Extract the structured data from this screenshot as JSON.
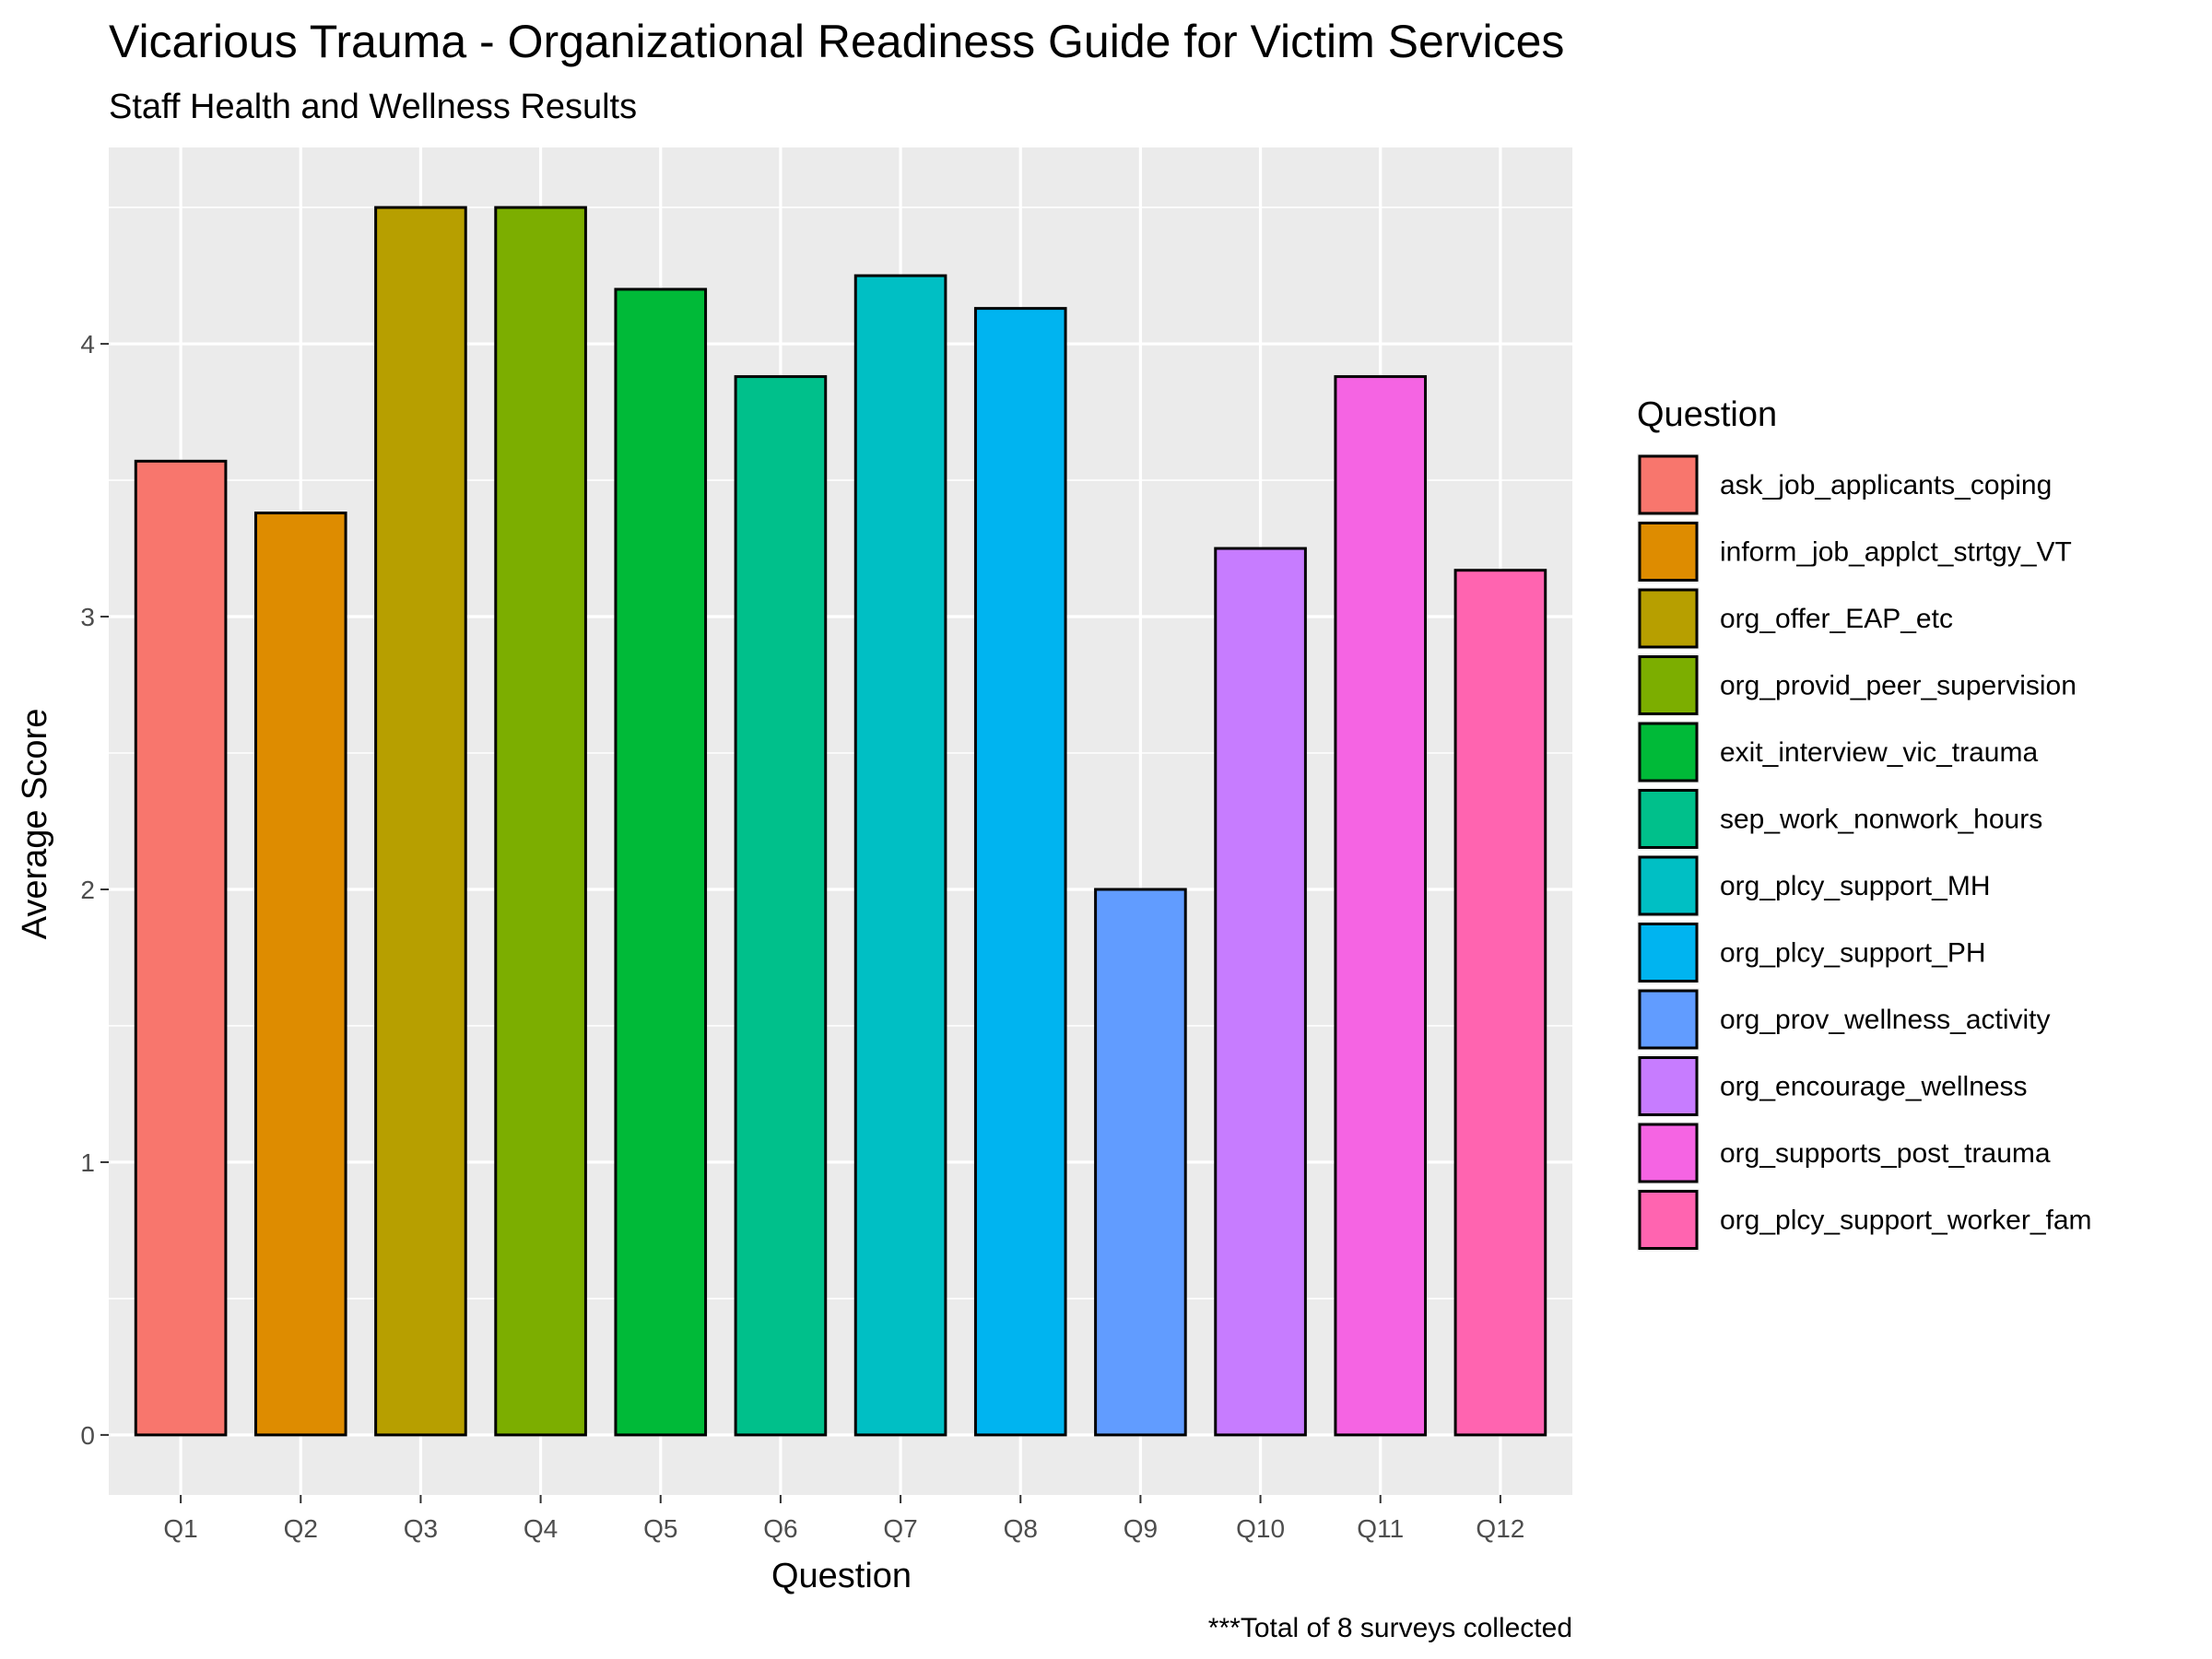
{
  "chart_data": {
    "type": "bar",
    "title": "Vicarious Trauma - Organizational Readiness Guide for Victim Services",
    "subtitle": "Staff Health and Wellness Results",
    "xlabel": "Question",
    "ylabel": "Average Score",
    "caption": "***Total of 8 surveys collected",
    "categories": [
      "Q1",
      "Q2",
      "Q3",
      "Q4",
      "Q5",
      "Q6",
      "Q7",
      "Q8",
      "Q9",
      "Q10",
      "Q11",
      "Q12"
    ],
    "values": [
      3.57,
      3.38,
      4.5,
      4.5,
      4.2,
      3.88,
      4.25,
      4.13,
      2.0,
      3.25,
      3.88,
      3.17
    ],
    "ylim": [
      -0.22,
      4.72
    ],
    "yticks": [
      0,
      1,
      2,
      3,
      4
    ],
    "grid": true,
    "legend": {
      "title": "Question",
      "placement": "right",
      "entries": [
        "ask_job_applicants_coping",
        "inform_job_applct_strtgy_VT",
        "org_offer_EAP_etc",
        "org_provid_peer_supervision",
        "exit_interview_vic_trauma",
        "sep_work_nonwork_hours",
        "org_plcy_support_MH",
        "org_plcy_support_PH",
        "org_prov_wellness_activity",
        "org_encourage_wellness",
        "org_supports_post_trauma",
        "org_plcy_support_worker_fam"
      ]
    },
    "colors": [
      "#F8766D",
      "#DE8C00",
      "#B79F00",
      "#7CAE00",
      "#00BA38",
      "#00C08B",
      "#00BFC4",
      "#00B4F0",
      "#619CFF",
      "#C77CFF",
      "#F564E3",
      "#FF64B0"
    ]
  }
}
